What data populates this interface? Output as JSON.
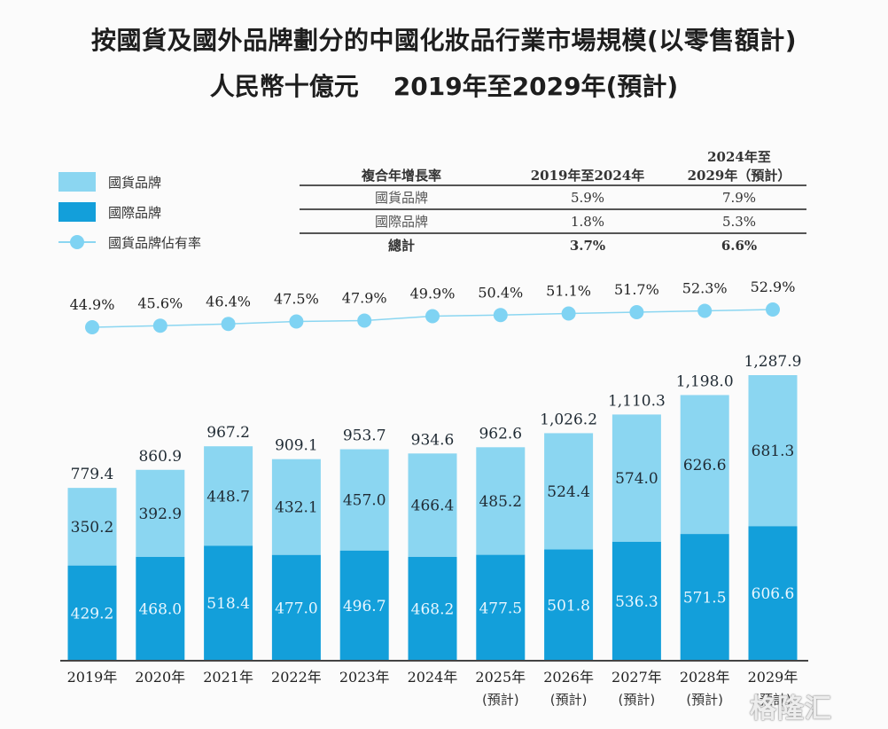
{
  "title": {
    "line1": "按國貨及國外品牌劃分的中國化妝品行業市場規模(以零售額計)",
    "line2": "人民幣十億元    2019年至2029年(預計)"
  },
  "legend": [
    {
      "label": "國貨品牌",
      "type": "bar-light"
    },
    {
      "label": "國際品牌",
      "type": "bar-dark"
    },
    {
      "label": "國貨品牌佔有率",
      "type": "line-marker"
    }
  ],
  "cagr_table": {
    "headers": [
      "複合年增長率",
      "2019年至2024年",
      "2024年至\n2029年（預計）"
    ],
    "header_col2_line1": "2024年至",
    "header_col2_line2": "2029年（預計）",
    "rows": [
      {
        "label": "國貨品牌",
        "v1": "5.9%",
        "v2": "7.9%"
      },
      {
        "label": "國際品牌",
        "v1": "1.8%",
        "v2": "5.3%"
      },
      {
        "label": "總計",
        "v1": "3.7%",
        "v2": "6.6%"
      }
    ]
  },
  "colors": {
    "domestic": "#8bd6f1",
    "international": "#139fda",
    "share_line": "#8bd6f1",
    "share_marker": "#7fd3f3",
    "axis": "#444444"
  },
  "watermark": "格隆汇",
  "chart_data": {
    "type": "bar",
    "stacked": true,
    "title": "按國貨及國外品牌劃分的中國化妝品行業市場規模(以零售額計)",
    "subtitle": "人民幣十億元 2019年至2029年(預計)",
    "unit": "人民幣十億元",
    "categories": [
      "2019年",
      "2020年",
      "2021年",
      "2022年",
      "2023年",
      "2024年",
      "2025年",
      "2026年",
      "2027年",
      "2028年",
      "2029年"
    ],
    "category_sublabels": [
      "",
      "",
      "",
      "",
      "",
      "",
      "(預計)",
      "(預計)",
      "(預計)",
      "(預計)",
      "(預計)"
    ],
    "series": [
      {
        "name": "國際品牌",
        "values": [
          429.2,
          468.0,
          518.4,
          477.0,
          496.7,
          468.2,
          477.5,
          501.8,
          536.3,
          571.5,
          606.6
        ]
      },
      {
        "name": "國貨品牌",
        "values": [
          350.2,
          392.9,
          448.7,
          432.1,
          457.0,
          466.4,
          485.2,
          524.4,
          574.0,
          626.6,
          681.3
        ]
      }
    ],
    "totals": [
      "779.4",
      "860.9",
      "967.2",
      "909.1",
      "953.7",
      "934.6",
      "962.6",
      "1,026.2",
      "1,110.3",
      "1,198.0",
      "1,287.9"
    ],
    "totals_numeric": [
      779.4,
      860.9,
      967.2,
      909.1,
      953.7,
      934.6,
      962.6,
      1026.2,
      1110.3,
      1198.0,
      1287.9
    ],
    "line_series": {
      "name": "國貨品牌佔有率",
      "values": [
        44.9,
        45.6,
        46.4,
        47.5,
        47.9,
        49.9,
        50.4,
        51.1,
        51.7,
        52.3,
        52.9
      ],
      "labels": [
        "44.9%",
        "45.6%",
        "46.4%",
        "47.5%",
        "47.9%",
        "49.9%",
        "50.4%",
        "51.1%",
        "51.7%",
        "52.3%",
        "52.9%"
      ]
    },
    "xlabel": "",
    "ylabel": "",
    "ylim": [
      0,
      1300
    ],
    "grid": false,
    "legend_position": "top-left"
  }
}
